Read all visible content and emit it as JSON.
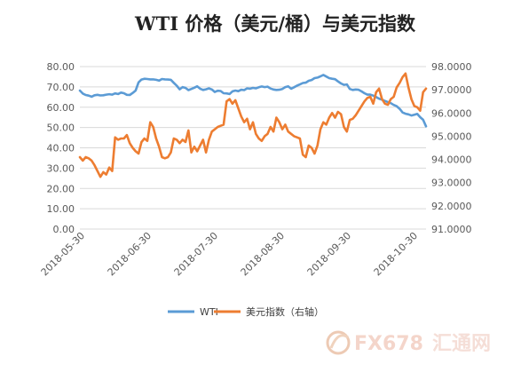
{
  "chart_data": {
    "type": "line",
    "title": "WTI 价格（美元/桶）与美元指数",
    "x": [
      "2018-05-30",
      "2018-06-30",
      "2018-07-30",
      "2018-08-30",
      "2018-09-30",
      "2018-10-30"
    ],
    "x_ticks": [
      "2018-05-30",
      "2018-06-30",
      "2018-07-30",
      "2018-08-30",
      "2018-09-30",
      "2018-10-30"
    ],
    "y_left": {
      "lim": [
        0,
        80
      ],
      "ticks": [
        "0.00",
        "10.00",
        "20.00",
        "30.00",
        "40.00",
        "50.00",
        "60.00",
        "70.00",
        "80.00"
      ]
    },
    "y_right": {
      "lim": [
        91,
        98
      ],
      "ticks": [
        "91.0000",
        "92.0000",
        "93.0000",
        "94.0000",
        "95.0000",
        "96.0000",
        "97.0000",
        "98.0000"
      ]
    },
    "grid": true,
    "legend_position": "bottom",
    "series": [
      {
        "name": "WTI",
        "axis": "left",
        "color": "#5b9bd5",
        "points": [
          [
            0,
            68.2
          ],
          [
            1,
            66.7
          ],
          [
            2,
            66.0
          ],
          [
            3,
            65.7
          ],
          [
            4,
            65.2
          ],
          [
            5,
            65.9
          ],
          [
            6,
            66.1
          ],
          [
            7,
            65.8
          ],
          [
            8,
            65.9
          ],
          [
            9,
            66.2
          ],
          [
            10,
            66.4
          ],
          [
            11,
            66.2
          ],
          [
            12,
            66.8
          ],
          [
            13,
            66.5
          ],
          [
            14,
            67.2
          ],
          [
            15,
            66.9
          ],
          [
            16,
            66.1
          ],
          [
            17,
            66.0
          ],
          [
            18,
            67.0
          ],
          [
            19,
            68.2
          ],
          [
            20,
            72.2
          ],
          [
            21,
            73.6
          ],
          [
            22,
            74.0
          ],
          [
            23,
            73.9
          ],
          [
            24,
            73.7
          ],
          [
            25,
            73.7
          ],
          [
            26,
            73.5
          ],
          [
            27,
            73.1
          ],
          [
            28,
            73.9
          ],
          [
            29,
            73.7
          ],
          [
            30,
            73.6
          ],
          [
            31,
            73.5
          ],
          [
            32,
            72.0
          ],
          [
            33,
            70.6
          ],
          [
            34,
            68.8
          ],
          [
            35,
            69.9
          ],
          [
            36,
            69.5
          ],
          [
            37,
            68.4
          ],
          [
            38,
            69.0
          ],
          [
            39,
            69.6
          ],
          [
            40,
            70.3
          ],
          [
            41,
            69.1
          ],
          [
            42,
            68.5
          ],
          [
            43,
            68.8
          ],
          [
            44,
            69.3
          ],
          [
            45,
            68.7
          ],
          [
            46,
            67.5
          ],
          [
            47,
            68.1
          ],
          [
            48,
            68.0
          ],
          [
            49,
            66.9
          ],
          [
            50,
            66.8
          ],
          [
            51,
            66.5
          ],
          [
            52,
            67.8
          ],
          [
            53,
            68.2
          ],
          [
            54,
            67.9
          ],
          [
            55,
            68.6
          ],
          [
            56,
            68.4
          ],
          [
            57,
            69.3
          ],
          [
            58,
            69.1
          ],
          [
            59,
            69.5
          ],
          [
            60,
            69.3
          ],
          [
            61,
            69.8
          ],
          [
            62,
            70.2
          ],
          [
            63,
            69.9
          ],
          [
            64,
            70.1
          ],
          [
            65,
            69.2
          ],
          [
            66,
            68.7
          ],
          [
            67,
            68.5
          ],
          [
            68,
            68.6
          ],
          [
            69,
            69.0
          ],
          [
            70,
            69.9
          ],
          [
            71,
            70.3
          ],
          [
            72,
            69.1
          ],
          [
            73,
            69.8
          ],
          [
            74,
            70.6
          ],
          [
            75,
            71.2
          ],
          [
            76,
            71.9
          ],
          [
            77,
            72.1
          ],
          [
            78,
            73.0
          ],
          [
            79,
            73.4
          ],
          [
            80,
            74.3
          ],
          [
            81,
            74.6
          ],
          [
            82,
            75.2
          ],
          [
            83,
            75.9
          ],
          [
            84,
            75.1
          ],
          [
            85,
            74.3
          ],
          [
            86,
            74.0
          ],
          [
            87,
            73.8
          ],
          [
            88,
            72.7
          ],
          [
            89,
            71.7
          ],
          [
            90,
            71.0
          ],
          [
            91,
            71.2
          ],
          [
            92,
            69.0
          ],
          [
            93,
            68.5
          ],
          [
            94,
            68.7
          ],
          [
            95,
            68.6
          ],
          [
            96,
            67.8
          ],
          [
            97,
            66.9
          ],
          [
            98,
            66.2
          ],
          [
            99,
            66.2
          ],
          [
            100,
            65.7
          ],
          [
            101,
            65.0
          ],
          [
            102,
            64.2
          ],
          [
            103,
            63.7
          ],
          [
            104,
            63.1
          ],
          [
            105,
            62.5
          ],
          [
            106,
            62.0
          ],
          [
            107,
            61.1
          ],
          [
            108,
            60.5
          ],
          [
            109,
            59.2
          ],
          [
            110,
            57.4
          ],
          [
            111,
            56.8
          ],
          [
            112,
            56.5
          ],
          [
            113,
            55.9
          ],
          [
            114,
            56.3
          ],
          [
            115,
            56.7
          ],
          [
            116,
            55.1
          ],
          [
            117,
            53.8
          ],
          [
            118,
            50.6
          ]
        ]
      },
      {
        "name": "美元指数（右轴）",
        "axis": "right",
        "color": "#ed7d31",
        "points": [
          [
            0,
            94.1
          ],
          [
            1,
            93.95
          ],
          [
            2,
            94.1
          ],
          [
            3,
            94.05
          ],
          [
            4,
            93.95
          ],
          [
            5,
            93.75
          ],
          [
            6,
            93.5
          ],
          [
            7,
            93.25
          ],
          [
            8,
            93.45
          ],
          [
            9,
            93.35
          ],
          [
            10,
            93.65
          ],
          [
            11,
            93.5
          ],
          [
            12,
            94.95
          ],
          [
            13,
            94.85
          ],
          [
            14,
            94.9
          ],
          [
            15,
            94.9
          ],
          [
            16,
            95.05
          ],
          [
            17,
            94.7
          ],
          [
            18,
            94.5
          ],
          [
            19,
            94.35
          ],
          [
            20,
            94.25
          ],
          [
            21,
            94.75
          ],
          [
            22,
            94.9
          ],
          [
            23,
            94.8
          ],
          [
            24,
            95.6
          ],
          [
            25,
            95.4
          ],
          [
            26,
            94.9
          ],
          [
            27,
            94.55
          ],
          [
            28,
            94.1
          ],
          [
            29,
            94.05
          ],
          [
            30,
            94.1
          ],
          [
            31,
            94.3
          ],
          [
            32,
            94.9
          ],
          [
            33,
            94.85
          ],
          [
            34,
            94.7
          ],
          [
            35,
            94.85
          ],
          [
            36,
            94.75
          ],
          [
            37,
            95.25
          ],
          [
            38,
            94.3
          ],
          [
            39,
            94.55
          ],
          [
            40,
            94.35
          ],
          [
            41,
            94.6
          ],
          [
            42,
            94.85
          ],
          [
            43,
            94.3
          ],
          [
            44,
            94.85
          ],
          [
            45,
            95.2
          ],
          [
            46,
            95.3
          ],
          [
            47,
            95.4
          ],
          [
            48,
            95.45
          ],
          [
            49,
            95.5
          ],
          [
            50,
            96.5
          ],
          [
            51,
            96.6
          ],
          [
            52,
            96.4
          ],
          [
            53,
            96.55
          ],
          [
            54,
            96.2
          ],
          [
            55,
            95.85
          ],
          [
            56,
            95.6
          ],
          [
            57,
            95.75
          ],
          [
            58,
            95.3
          ],
          [
            59,
            95.6
          ],
          [
            60,
            95.1
          ],
          [
            61,
            94.9
          ],
          [
            62,
            94.8
          ],
          [
            63,
            95.0
          ],
          [
            64,
            95.1
          ],
          [
            65,
            95.4
          ],
          [
            66,
            95.2
          ],
          [
            67,
            95.8
          ],
          [
            68,
            95.6
          ],
          [
            69,
            95.3
          ],
          [
            70,
            95.5
          ],
          [
            71,
            95.2
          ],
          [
            72,
            95.1
          ],
          [
            73,
            95.0
          ],
          [
            74,
            94.95
          ],
          [
            75,
            94.9
          ],
          [
            76,
            94.2
          ],
          [
            77,
            94.1
          ],
          [
            78,
            94.6
          ],
          [
            79,
            94.5
          ],
          [
            80,
            94.25
          ],
          [
            81,
            94.6
          ],
          [
            82,
            95.3
          ],
          [
            83,
            95.6
          ],
          [
            84,
            95.5
          ],
          [
            85,
            95.8
          ],
          [
            86,
            96.0
          ],
          [
            87,
            95.8
          ],
          [
            88,
            96.05
          ],
          [
            89,
            95.95
          ],
          [
            90,
            95.4
          ],
          [
            91,
            95.2
          ],
          [
            92,
            95.7
          ],
          [
            93,
            95.75
          ],
          [
            94,
            95.9
          ],
          [
            95,
            96.1
          ],
          [
            96,
            96.3
          ],
          [
            97,
            96.5
          ],
          [
            98,
            96.65
          ],
          [
            99,
            96.7
          ],
          [
            100,
            96.4
          ],
          [
            101,
            96.9
          ],
          [
            102,
            97.05
          ],
          [
            103,
            96.6
          ],
          [
            104,
            96.4
          ],
          [
            105,
            96.35
          ],
          [
            106,
            96.6
          ],
          [
            107,
            96.7
          ],
          [
            108,
            97.1
          ],
          [
            109,
            97.3
          ],
          [
            110,
            97.55
          ],
          [
            111,
            97.7
          ],
          [
            112,
            97.1
          ],
          [
            113,
            96.6
          ],
          [
            114,
            96.3
          ],
          [
            115,
            96.25
          ],
          [
            116,
            96.1
          ],
          [
            117,
            96.9
          ],
          [
            118,
            97.05
          ]
        ]
      }
    ]
  },
  "watermark": {
    "text_a": "FX678",
    "text_b": "汇通网"
  }
}
